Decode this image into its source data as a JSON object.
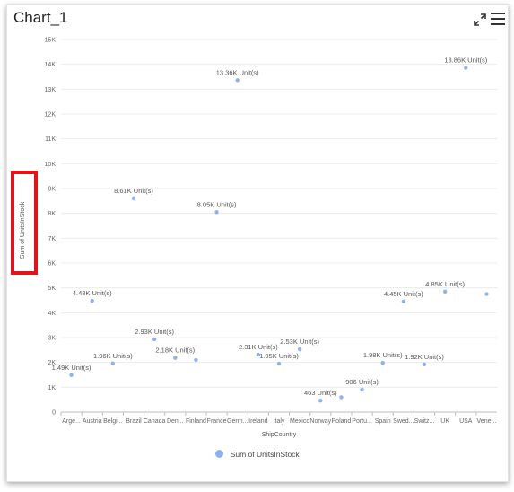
{
  "chart_title": "Chart_1",
  "icons": {
    "expand": "expand-icon",
    "menu": "hamburger-menu-icon"
  },
  "colors": {
    "series": "#8fb1f0",
    "highlight": "#e0151b"
  },
  "chart_data": {
    "type": "scatter",
    "title": "Chart_1",
    "xlabel": "ShipCountry",
    "ylabel": "Sum of UnitsInStock",
    "ylim": [
      0,
      15000
    ],
    "yticks": [
      0,
      1000,
      2000,
      3000,
      4000,
      5000,
      6000,
      7000,
      8000,
      9000,
      10000,
      11000,
      12000,
      13000,
      14000,
      15000
    ],
    "ytick_labels": [
      "0",
      "1K",
      "2K",
      "3K",
      "4K",
      "5K",
      "6K",
      "7K",
      "8K",
      "9K",
      "10K",
      "11K",
      "12K",
      "13K",
      "14K",
      "15K"
    ],
    "categories": [
      "Arge...",
      "Austria",
      "Belgi...",
      "Brazil",
      "Canada",
      "Den...",
      "Finland",
      "France",
      "Germ...",
      "Ireland",
      "Italy",
      "Mexico",
      "Norway",
      "Poland",
      "Portu...",
      "Spain",
      "Swed...",
      "Switz...",
      "UK",
      "USA",
      "Vene..."
    ],
    "series": [
      {
        "name": "Sum of UnitsInStock",
        "values": [
          1490,
          4480,
          1960,
          8610,
          2930,
          2180,
          2100,
          8050,
          13360,
          2310,
          1950,
          2530,
          463,
          600,
          906,
          1980,
          4450,
          1920,
          4850,
          13860,
          4750
        ],
        "labels": [
          "1.49K Unit(s)",
          "4.48K Unit(s)",
          "1.96K Unit(s)",
          "8.61K Unit(s)",
          "2.93K Unit(s)",
          "2.18K Unit(s)",
          "",
          "8.05K Unit(s)",
          "13.36K Unit(s)",
          "2.31K Unit(s)",
          "1.95K Unit(s)",
          "2.53K Unit(s)",
          "463 Unit(s)",
          "",
          "906 Unit(s)",
          "1.98K Unit(s)",
          "4.45K Unit(s)",
          "1.92K Unit(s)",
          "4.85K Unit(s)",
          "13.86K Unit(s)",
          ""
        ]
      }
    ],
    "grid": true,
    "legend": "bottom"
  }
}
